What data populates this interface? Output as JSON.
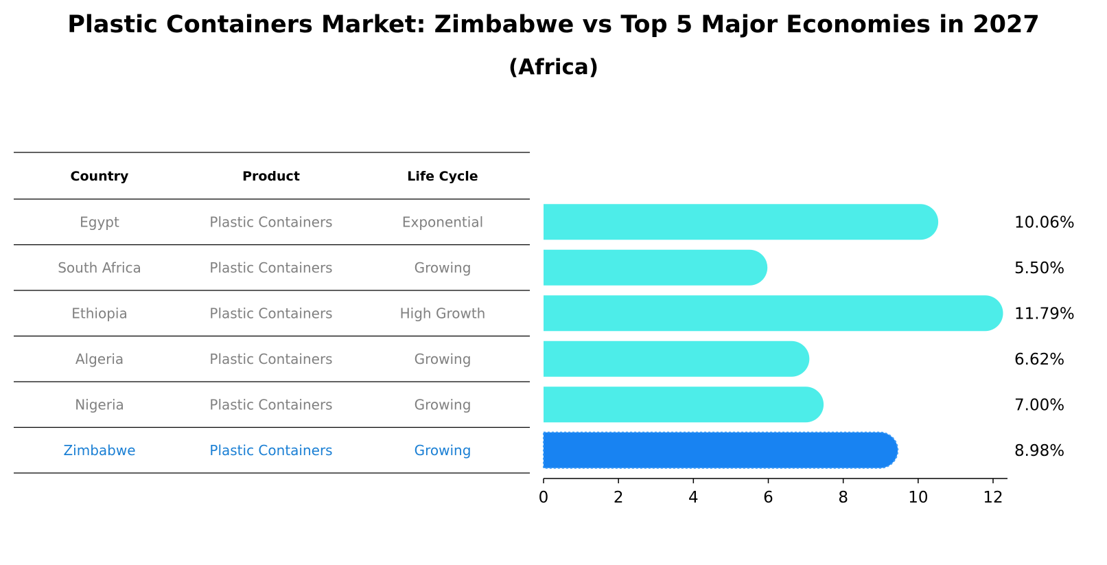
{
  "title": "Plastic Containers Market: Zimbabwe vs Top 5 Major Economies in 2027",
  "subtitle": "(Africa)",
  "table": {
    "headers": [
      "Country",
      "Product",
      "Life Cycle"
    ]
  },
  "colors": {
    "bar": "#4dede9",
    "highlight_bar": "#1883f2",
    "highlight_text": "#1a7fd4",
    "muted_text": "#808080"
  },
  "chart_data": {
    "type": "bar",
    "orientation": "horizontal",
    "categories": [
      "Egypt",
      "South Africa",
      "Ethiopia",
      "Algeria",
      "Nigeria",
      "Zimbabwe"
    ],
    "products": [
      "Plastic Containers",
      "Plastic Containers",
      "Plastic Containers",
      "Plastic Containers",
      "Plastic Containers",
      "Plastic Containers"
    ],
    "life_cycle": [
      "Exponential",
      "Growing",
      "High Growth",
      "Growing",
      "Growing",
      "Growing"
    ],
    "values": [
      10.06,
      5.5,
      11.79,
      6.62,
      7.0,
      8.98
    ],
    "value_labels": [
      "10.06%",
      "5.50%",
      "11.79%",
      "6.62%",
      "7.00%",
      "8.98%"
    ],
    "highlight": "Zimbabwe",
    "xlim": [
      0,
      12.4
    ],
    "xticks": [
      0,
      2,
      4,
      6,
      8,
      10,
      12
    ],
    "grid": false
  }
}
